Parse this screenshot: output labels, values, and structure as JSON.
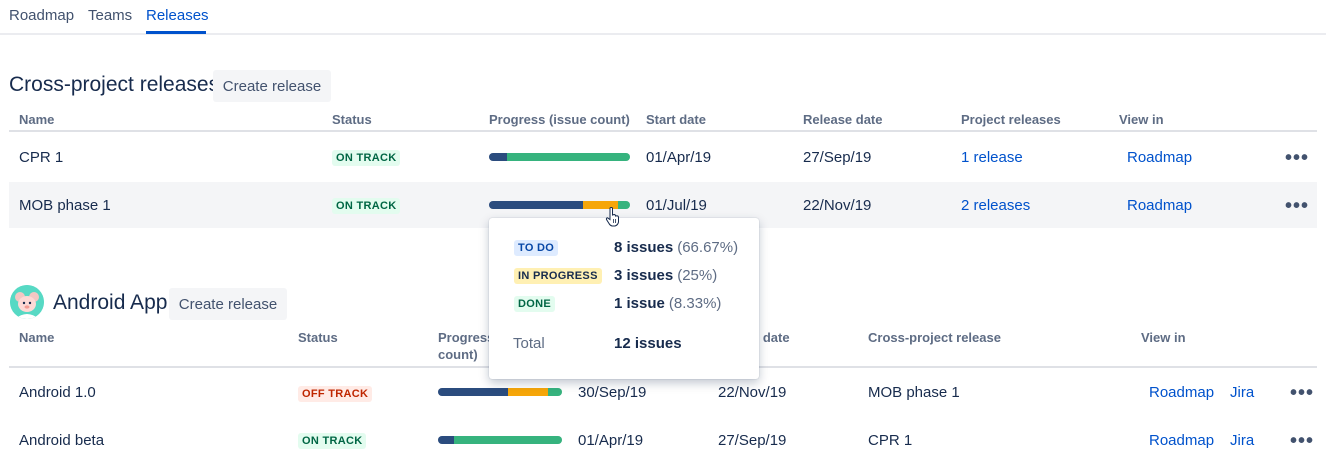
{
  "tabs": [
    {
      "label": "Roadmap"
    },
    {
      "label": "Teams"
    },
    {
      "label": "Releases"
    }
  ],
  "cross_project": {
    "title": "Cross-project releases",
    "create_label": "Create release",
    "headers": {
      "name": "Name",
      "status": "Status",
      "progress": "Progress (issue count)",
      "start": "Start date",
      "release": "Release date",
      "project_releases": "Project releases",
      "view_in": "View in"
    },
    "rows": [
      {
        "name": "CPR 1",
        "status": "ON TRACK",
        "progress": {
          "todo": 1,
          "in_progress": 0,
          "done": 7
        },
        "start": "01/Apr/19",
        "release": "27/Sep/19",
        "project_releases": "1 release",
        "view_in": "Roadmap",
        "more": "•••"
      },
      {
        "name": "MOB phase 1",
        "status": "ON TRACK",
        "progress": {
          "todo": 8,
          "in_progress": 3,
          "done": 1
        },
        "start": "01/Jul/19",
        "release": "22/Nov/19",
        "project_releases": "2 releases",
        "view_in": "Roadmap",
        "more": "•••"
      }
    ]
  },
  "tooltip": {
    "todo_label": "TO DO",
    "todo_value": "8 issues",
    "todo_pct": "(66.67%)",
    "progress_label": "IN PROGRESS",
    "progress_value": "3 issues",
    "progress_pct": "(25%)",
    "done_label": "DONE",
    "done_value": "1 issue",
    "done_pct": "(8.33%)",
    "total_label": "Total",
    "total_value": "12 issues"
  },
  "android": {
    "title": "Android App",
    "create_label": "Create release",
    "headers": {
      "name": "Name",
      "status": "Status",
      "progress_line1": "Progress",
      "progress_line2": "count)",
      "release_partial": "e date",
      "cross_project_release": "Cross-project release",
      "view_in": "View in"
    },
    "rows": [
      {
        "name": "Android 1.0",
        "status": "OFF TRACK",
        "progress": {
          "todo": 7,
          "in_progress": 4,
          "done": 1.4
        },
        "start": "30/Sep/19",
        "release": "22/Nov/19",
        "cpr": "MOB phase 1",
        "view_roadmap": "Roadmap",
        "view_jira": "Jira",
        "more": "•••"
      },
      {
        "name": "Android beta",
        "status": "ON TRACK",
        "progress": {
          "todo": 1.5,
          "in_progress": 0,
          "done": 10.5
        },
        "start": "01/Apr/19",
        "release": "27/Sep/19",
        "cpr": "CPR 1",
        "view_roadmap": "Roadmap",
        "view_jira": "Jira",
        "more": "•••"
      }
    ]
  },
  "colors": {
    "accent": "#0052CC",
    "todo": "#2B4C7E",
    "in_progress": "#F6A609",
    "done": "#36B37E"
  },
  "icons": [
    "android-avatar-icon",
    "pointer-cursor-icon",
    "more-icon"
  ]
}
